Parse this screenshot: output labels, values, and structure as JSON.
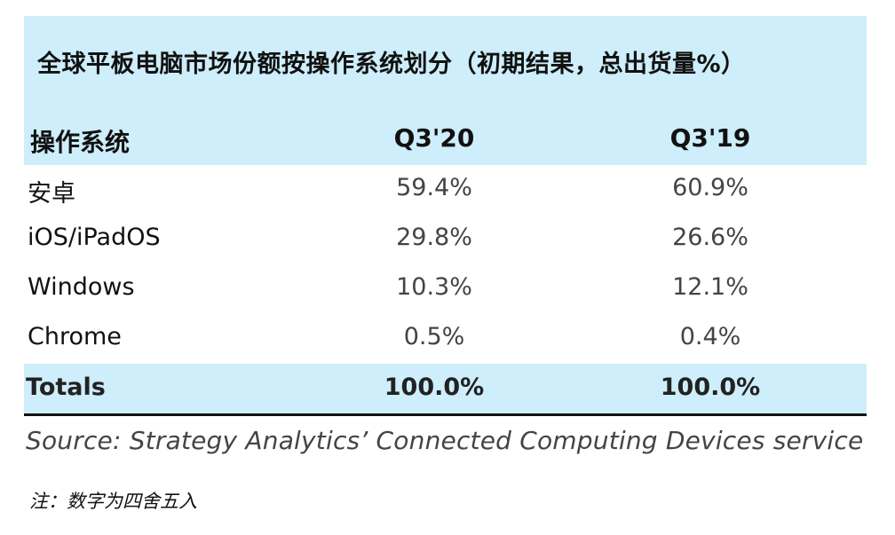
{
  "title": "全球平板电脑市场份额按操作系统划分（初期结果，总出货量%）",
  "columns": [
    "操作系统",
    "Q3'20",
    "Q3'19"
  ],
  "rows": [
    {
      "os": "安卓",
      "q3_20": "59.4%",
      "q3_19": "60.9%"
    },
    {
      "os": "iOS/iPadOS",
      "q3_20": "29.8%",
      "q3_19": "26.6%"
    },
    {
      "os": "Windows",
      "q3_20": "10.3%",
      "q3_19": "12.1%"
    },
    {
      "os": "Chrome",
      "q3_20": "0.5%",
      "q3_19": "0.4%"
    }
  ],
  "totals": {
    "label": "Totals",
    "q3_20": "100.0%",
    "q3_19": "100.0%"
  },
  "source": "Source: Strategy Analytics’ Connected Computing Devices service",
  "note": "注：数字为四舍五入",
  "colors": {
    "header_band": "#cdeefa",
    "text": "#111111",
    "value_text": "#444444"
  }
}
